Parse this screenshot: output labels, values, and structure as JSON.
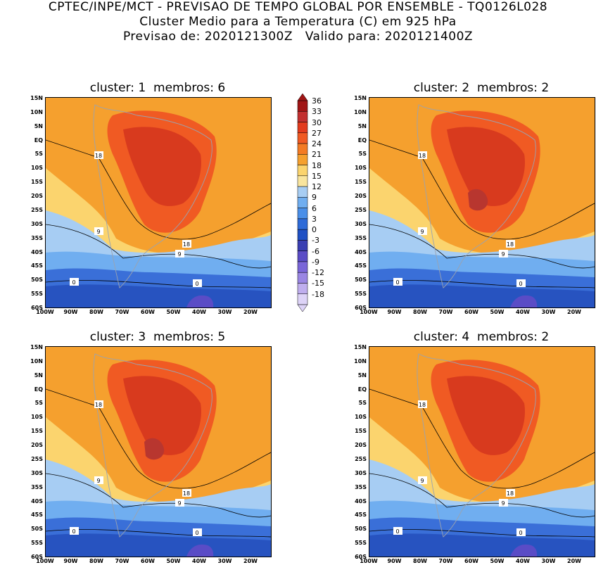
{
  "header": {
    "line1": "CPTEC/INPE/MCT - PREVISAO DE TEMPO GLOBAL POR ENSEMBLE - TQ0126L028",
    "line2": "Cluster Medio para a Temperatura (C) em 925 hPa",
    "line3": "Previsao de: 2020121300Z   Valido para: 2020121400Z"
  },
  "panels": [
    {
      "title": "cluster: 1  membros: 6"
    },
    {
      "title": "cluster: 2  membros: 2"
    },
    {
      "title": "cluster: 3  membros: 5"
    },
    {
      "title": "cluster: 4  membros: 2"
    }
  ],
  "lat_labels": [
    "15N",
    "10N",
    "5N",
    "EQ",
    "5S",
    "10S",
    "15S",
    "20S",
    "25S",
    "30S",
    "35S",
    "40S",
    "45S",
    "50S",
    "55S",
    "60S"
  ],
  "lon_labels": [
    "100W",
    "90W",
    "80W",
    "70W",
    "60W",
    "50W",
    "40W",
    "30W",
    "20W"
  ],
  "colorbar": {
    "labels": [
      "36",
      "33",
      "30",
      "27",
      "24",
      "21",
      "18",
      "15",
      "12",
      "9",
      "6",
      "3",
      "0",
      "-3",
      "-6",
      "-9",
      "-12",
      "-15",
      "-18"
    ],
    "colors": [
      "#a01515",
      "#c23030",
      "#e23b1e",
      "#f05a23",
      "#f37b24",
      "#f5a02e",
      "#fbd46e",
      "#f9e59e",
      "#a7cdf3",
      "#70aef0",
      "#4a8fe8",
      "#2e6bd8",
      "#1f50c4",
      "#3a3fb2",
      "#5a4cc6",
      "#7a66d8",
      "#9a86e3",
      "#bfaeee",
      "#ddd3f7"
    ]
  },
  "contour_labels": {
    "c18": "18",
    "c9": "9",
    "c0": "0"
  },
  "colors": {
    "warm": "#f5a02e",
    "hot": "#f05a23",
    "very_hot": "#d83a1e",
    "peak": "#b8362f",
    "pale": "#fbd46e",
    "cool_light": "#a7cdf3",
    "cool_mid": "#70aef0",
    "cold": "#3a6fd8",
    "colder": "#2753c0",
    "coldest": "#5a4cc6"
  }
}
